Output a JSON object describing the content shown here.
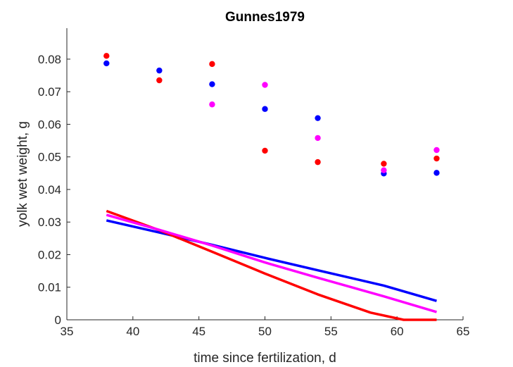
{
  "chart_data": {
    "type": "scatter",
    "title": "Gunnes1979",
    "xlabel": "time since fertilization, d",
    "ylabel": "yolk wet weight, g",
    "xlim": [
      35,
      65
    ],
    "ylim": [
      0,
      0.0895
    ],
    "xticks": [
      35,
      40,
      45,
      50,
      55,
      60,
      65
    ],
    "yticks": [
      0,
      0.01,
      0.02,
      0.03,
      0.04,
      0.05,
      0.06,
      0.07,
      0.08
    ],
    "xtick_labels": [
      "35",
      "40",
      "45",
      "50",
      "55",
      "60",
      "65"
    ],
    "ytick_labels": [
      "0",
      "0.01",
      "0.02",
      "0.03",
      "0.04",
      "0.05",
      "0.06",
      "0.07",
      "0.08"
    ],
    "grid": false,
    "series": [
      {
        "color": "#0000ff",
        "points": [
          [
            38,
            0.0787
          ],
          [
            42,
            0.0765
          ],
          [
            46,
            0.0723
          ],
          [
            50,
            0.0647
          ],
          [
            54,
            0.0619
          ],
          [
            59,
            0.0449
          ],
          [
            63,
            0.0451
          ]
        ],
        "line": [
          [
            38,
            0.0305
          ],
          [
            42,
            0.0268
          ],
          [
            46,
            0.023
          ],
          [
            50,
            0.019
          ],
          [
            54,
            0.0152
          ],
          [
            59,
            0.0105
          ],
          [
            63,
            0.0058
          ]
        ]
      },
      {
        "color": "#ff0000",
        "points": [
          [
            38,
            0.081
          ],
          [
            42,
            0.0735
          ],
          [
            46,
            0.0785
          ],
          [
            50,
            0.0519
          ],
          [
            54,
            0.0484
          ],
          [
            59,
            0.0479
          ],
          [
            63,
            0.0495
          ]
        ],
        "line": [
          [
            38,
            0.0334
          ],
          [
            42,
            0.0275
          ],
          [
            46,
            0.0209
          ],
          [
            50,
            0.0142
          ],
          [
            54,
            0.0078
          ],
          [
            58,
            0.0022
          ],
          [
            60.5,
            0.0
          ],
          [
            63,
            0.0
          ]
        ]
      },
      {
        "color": "#ff00ff",
        "points": [
          [
            46,
            0.0661
          ],
          [
            50,
            0.0721
          ],
          [
            54,
            0.0558
          ],
          [
            59,
            0.0459
          ],
          [
            63,
            0.0521
          ]
        ],
        "line": [
          [
            38,
            0.0322
          ],
          [
            42,
            0.0276
          ],
          [
            46,
            0.0228
          ],
          [
            50,
            0.0176
          ],
          [
            54,
            0.0129
          ],
          [
            59,
            0.0072
          ],
          [
            63,
            0.0024
          ]
        ]
      }
    ]
  }
}
